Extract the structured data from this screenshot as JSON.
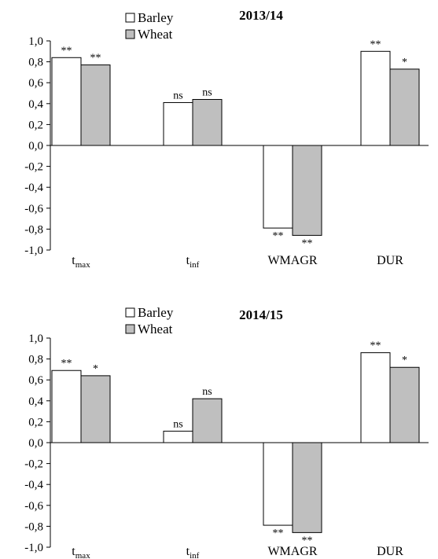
{
  "chart_data": [
    {
      "type": "bar",
      "title": "2013/14",
      "categories": [
        {
          "base": "t",
          "sub": "max"
        },
        {
          "base": "t",
          "sub": "inf"
        },
        {
          "base": "WMAGR",
          "sub": ""
        },
        {
          "base": "DUR",
          "sub": ""
        }
      ],
      "series": [
        {
          "name": "Barley",
          "color": "#ffffff",
          "values": [
            0.84,
            0.41,
            -0.79,
            0.9
          ],
          "labels": [
            "**",
            "ns",
            "**",
            "**"
          ]
        },
        {
          "name": "Wheat",
          "color": "#bfbfbf",
          "values": [
            0.77,
            0.44,
            -0.86,
            0.73
          ],
          "labels": [
            "**",
            "ns",
            "**",
            "*"
          ]
        }
      ],
      "ylim": [
        -1.0,
        1.0
      ],
      "yticks": [
        "1,0",
        "0,8",
        "0,6",
        "0,4",
        "0,2",
        "0,0",
        "-0,2",
        "-0,4",
        "-0,6",
        "-0,8",
        "-1,0"
      ],
      "legend_position": "top-left",
      "grid": false
    },
    {
      "type": "bar",
      "title": "2014/15",
      "categories": [
        {
          "base": "t",
          "sub": "max"
        },
        {
          "base": "t",
          "sub": "inf"
        },
        {
          "base": "WMAGR",
          "sub": ""
        },
        {
          "base": "DUR",
          "sub": ""
        }
      ],
      "series": [
        {
          "name": "Barley",
          "color": "#ffffff",
          "values": [
            0.69,
            0.11,
            -0.79,
            0.86
          ],
          "labels": [
            "**",
            "ns",
            "**",
            "**"
          ]
        },
        {
          "name": "Wheat",
          "color": "#bfbfbf",
          "values": [
            0.64,
            0.42,
            -0.86,
            0.72
          ],
          "labels": [
            "*",
            "ns",
            "**",
            "*"
          ]
        }
      ],
      "ylim": [
        -1.0,
        1.0
      ],
      "yticks": [
        "1,0",
        "0,8",
        "0,6",
        "0,4",
        "0,2",
        "0,0",
        "-0,2",
        "-0,4",
        "-0,6",
        "-0,8",
        "-1,0"
      ],
      "legend_position": "top-left",
      "grid": false
    }
  ]
}
